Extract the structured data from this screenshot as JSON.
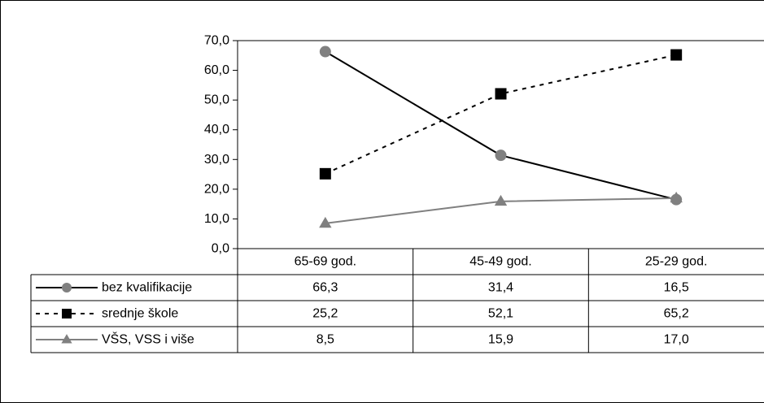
{
  "chart_data": {
    "type": "line",
    "title": "",
    "xlabel": "",
    "ylabel": "",
    "categories": [
      "65-69 god.",
      "45-49 god.",
      "25-29 god."
    ],
    "ylim": [
      0,
      70
    ],
    "yticks": [
      "0,0",
      "10,0",
      "20,0",
      "30,0",
      "40,0",
      "50,0",
      "60,0",
      "70,0"
    ],
    "grid": false,
    "legend": "data-table-left",
    "series": [
      {
        "name": "bez kvalifikacije",
        "values": [
          66.3,
          31.4,
          16.5
        ],
        "labels": [
          "66,3",
          "31,4",
          "16,5"
        ],
        "color": "#000000",
        "marker_color": "#808080",
        "marker": "circle",
        "line_style": "solid"
      },
      {
        "name": "srednje škole",
        "values": [
          25.2,
          52.1,
          65.2
        ],
        "labels": [
          "25,2",
          "52,1",
          "65,2"
        ],
        "color": "#000000",
        "marker_color": "#000000",
        "marker": "square",
        "line_style": "dashed"
      },
      {
        "name": "VŠS, VSS i više",
        "values": [
          8.5,
          15.9,
          17.0
        ],
        "labels": [
          "8,5",
          "15,9",
          "17,0"
        ],
        "color": "#808080",
        "marker_color": "#808080",
        "marker": "triangle",
        "line_style": "solid"
      }
    ]
  }
}
